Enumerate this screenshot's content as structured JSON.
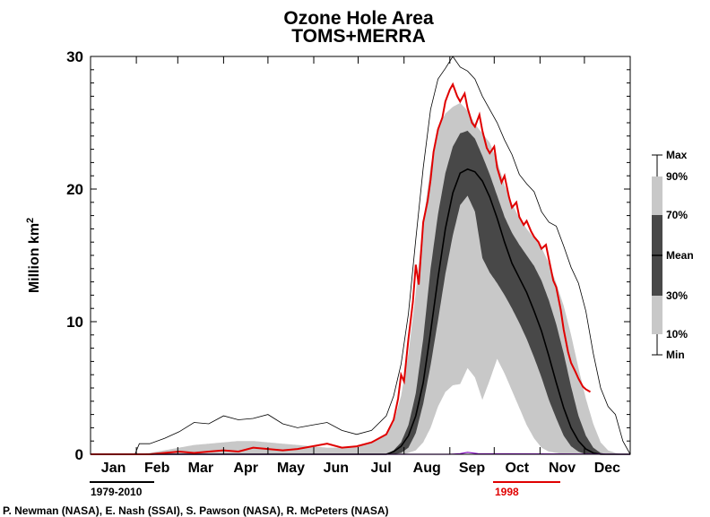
{
  "chart_data": {
    "type": "area",
    "title": "Ozone Hole Area",
    "subtitle": "TOMS+MERRA",
    "ylabel": "Million km",
    "ylabel_superscript": "2",
    "ylim": [
      0,
      30
    ],
    "yticks": [
      0,
      10,
      20,
      30
    ],
    "ytick_labels": [
      "0",
      "10",
      "20",
      "30"
    ],
    "xlim": [
      0,
      365
    ],
    "months": [
      "Jan",
      "Feb",
      "Mar",
      "Apr",
      "May",
      "Jun",
      "Jul",
      "Aug",
      "Sep",
      "Oct",
      "Nov",
      "Dec"
    ],
    "month_starts": [
      0,
      31,
      59,
      90,
      120,
      151,
      181,
      212,
      243,
      273,
      304,
      334,
      365
    ],
    "x_unit": "day of year",
    "climatology_label": "1979-2010",
    "highlight_year_label": "1998",
    "colors": {
      "band_10_90": "#c8c8c8",
      "band_30_70": "#484848",
      "mean": "#000000",
      "max_line": "#000000",
      "year_1998": "#e00000",
      "baseline_marker": "#8000c0",
      "legend_underline_climatology": "#000000",
      "legend_underline_year": "#e00000"
    },
    "legend": {
      "position": "right",
      "labels": [
        "Max",
        "90%",
        "70%",
        "Mean",
        "30%",
        "10%",
        "Min"
      ]
    },
    "series": [
      {
        "name": "Max",
        "x": [
          0,
          30,
          33,
          40,
          50,
          60,
          70,
          80,
          90,
          100,
          110,
          120,
          130,
          140,
          150,
          160,
          170,
          180,
          190,
          200,
          205,
          210,
          215,
          220,
          225,
          230,
          235,
          240,
          245,
          250,
          255,
          260,
          265,
          270,
          275,
          280,
          285,
          290,
          295,
          300,
          305,
          310,
          315,
          320,
          325,
          330,
          335,
          340,
          345,
          350,
          355,
          360,
          365
        ],
        "values": [
          0,
          0,
          0.8,
          0.8,
          1.2,
          1.7,
          2.4,
          2.3,
          2.9,
          2.6,
          2.7,
          3.0,
          2.3,
          2.0,
          2.2,
          2.4,
          1.8,
          1.5,
          1.8,
          2.9,
          4.4,
          6.8,
          10.6,
          16.2,
          21.6,
          26.0,
          28.3,
          29.1,
          30.0,
          29.2,
          28.9,
          28.3,
          27.0,
          26.0,
          25.0,
          23.7,
          22.6,
          21.1,
          20.4,
          19.8,
          18.3,
          17.5,
          17.2,
          15.7,
          14.1,
          12.9,
          10.8,
          7.6,
          5.0,
          3.6,
          3.0,
          1.0,
          0
        ]
      },
      {
        "name": "90%",
        "x": [
          0,
          30,
          40,
          50,
          60,
          70,
          80,
          90,
          100,
          110,
          120,
          130,
          140,
          150,
          160,
          170,
          180,
          190,
          200,
          205,
          210,
          215,
          220,
          225,
          230,
          235,
          240,
          245,
          250,
          255,
          260,
          265,
          270,
          275,
          280,
          285,
          290,
          295,
          300,
          305,
          310,
          315,
          320,
          325,
          330,
          335,
          340,
          345,
          350,
          355,
          360,
          365
        ],
        "values": [
          0,
          0,
          0.1,
          0.3,
          0.5,
          0.7,
          0.8,
          0.9,
          1.0,
          1.0,
          0.9,
          0.8,
          0.7,
          0.6,
          0.5,
          0.5,
          0.6,
          0.9,
          1.5,
          2.4,
          4.4,
          7.6,
          12.2,
          17.5,
          21.7,
          24.6,
          25.7,
          26.2,
          26.5,
          25.9,
          24.9,
          24.2,
          23.5,
          22.1,
          20.3,
          18.9,
          17.8,
          17.0,
          16.3,
          15.6,
          14.4,
          12.9,
          11.2,
          9.0,
          6.5,
          4.2,
          2.3,
          0.9,
          0.3,
          0.1,
          0,
          0
        ]
      },
      {
        "name": "70%",
        "x": [
          0,
          200,
          205,
          210,
          215,
          220,
          225,
          230,
          235,
          240,
          245,
          250,
          255,
          260,
          265,
          270,
          275,
          280,
          285,
          290,
          295,
          300,
          305,
          310,
          315,
          320,
          325,
          330,
          335,
          340,
          345,
          350,
          365
        ],
        "values": [
          0,
          0,
          0.3,
          0.9,
          2.2,
          4.6,
          8.7,
          14.0,
          18.1,
          21.2,
          23.2,
          24.2,
          24.4,
          23.8,
          22.5,
          21.1,
          19.5,
          17.9,
          16.7,
          15.8,
          15.0,
          14.2,
          13.1,
          11.6,
          9.8,
          7.6,
          5.1,
          2.9,
          1.4,
          0.5,
          0.1,
          0,
          0
        ]
      },
      {
        "name": "Mean",
        "x": [
          0,
          200,
          205,
          210,
          215,
          220,
          225,
          230,
          235,
          240,
          245,
          250,
          255,
          260,
          265,
          270,
          275,
          280,
          285,
          290,
          295,
          300,
          305,
          310,
          315,
          320,
          325,
          330,
          335,
          340,
          345,
          350,
          355,
          365
        ],
        "values": [
          0,
          0,
          0.2,
          0.6,
          1.4,
          2.9,
          5.4,
          9.2,
          13.3,
          17.0,
          19.7,
          21.2,
          21.5,
          21.3,
          20.6,
          19.4,
          17.8,
          16.0,
          14.4,
          13.3,
          12.2,
          10.8,
          9.3,
          7.4,
          5.4,
          3.5,
          2.0,
          1.0,
          0.4,
          0.1,
          0,
          0,
          0,
          0
        ]
      },
      {
        "name": "30%",
        "x": [
          0,
          205,
          210,
          215,
          220,
          225,
          230,
          235,
          240,
          245,
          250,
          255,
          260,
          265,
          270,
          275,
          280,
          285,
          290,
          295,
          300,
          305,
          310,
          315,
          320,
          325,
          330,
          335,
          340,
          365
        ],
        "values": [
          0,
          0,
          0.1,
          0.5,
          1.6,
          3.8,
          6.7,
          10.1,
          13.6,
          16.5,
          18.8,
          19.5,
          18.3,
          14.8,
          13.7,
          12.9,
          12.0,
          11.0,
          9.9,
          8.7,
          7.3,
          5.8,
          4.1,
          2.7,
          1.4,
          0.6,
          0.2,
          0,
          0,
          0
        ]
      },
      {
        "name": "10%",
        "x": [
          0,
          212,
          215,
          220,
          225,
          230,
          235,
          240,
          245,
          250,
          255,
          260,
          265,
          270,
          275,
          280,
          285,
          290,
          295,
          300,
          305,
          310,
          315,
          320,
          325,
          330,
          365
        ],
        "values": [
          0,
          0,
          0.1,
          0.3,
          0.9,
          2.0,
          3.6,
          4.7,
          5.2,
          5.3,
          6.5,
          5.8,
          4.1,
          5.6,
          7.2,
          6.1,
          4.8,
          3.5,
          2.2,
          1.2,
          0.5,
          0.2,
          0.1,
          0,
          0,
          0,
          0
        ]
      },
      {
        "name": "1998",
        "x": [
          0,
          30,
          40,
          50,
          60,
          70,
          80,
          90,
          100,
          110,
          120,
          130,
          140,
          150,
          160,
          170,
          180,
          190,
          200,
          205,
          208,
          210,
          212,
          215,
          218,
          220,
          222,
          225,
          228,
          230,
          232,
          235,
          238,
          240,
          243,
          245,
          248,
          250,
          253,
          255,
          258,
          260,
          263,
          265,
          268,
          270,
          273,
          275,
          278,
          280,
          283,
          285,
          288,
          290,
          293,
          295,
          298,
          300,
          303,
          305,
          308,
          310,
          313,
          315,
          318,
          320,
          323,
          325,
          328,
          330,
          333,
          335,
          338
        ],
        "values": [
          0,
          0,
          0,
          0.1,
          0.2,
          0.1,
          0.2,
          0.3,
          0.2,
          0.5,
          0.4,
          0.3,
          0.4,
          0.6,
          0.8,
          0.5,
          0.6,
          0.9,
          1.5,
          2.6,
          4.2,
          6.0,
          5.5,
          8.7,
          11.5,
          14.3,
          12.8,
          17.5,
          19.1,
          20.7,
          22.8,
          24.5,
          25.4,
          26.6,
          27.5,
          27.9,
          27.0,
          26.6,
          27.2,
          26.1,
          25.0,
          24.7,
          25.6,
          24.4,
          23.1,
          22.7,
          23.2,
          21.6,
          20.5,
          21.0,
          19.4,
          18.6,
          19.0,
          17.9,
          17.3,
          17.6,
          16.8,
          16.4,
          16.0,
          15.5,
          15.8,
          14.7,
          13.1,
          12.6,
          10.9,
          9.4,
          7.7,
          6.9,
          6.2,
          5.7,
          5.1,
          4.9,
          4.7
        ]
      },
      {
        "name": "Min",
        "x": [
          0,
          243,
          250,
          255,
          262,
          365
        ],
        "values": [
          0,
          0,
          0.05,
          0.15,
          0.05,
          0
        ]
      }
    ]
  },
  "credits": "P. Newman (NASA), E. Nash (SSAI), S. Pawson (NASA), R. McPeters (NASA)"
}
